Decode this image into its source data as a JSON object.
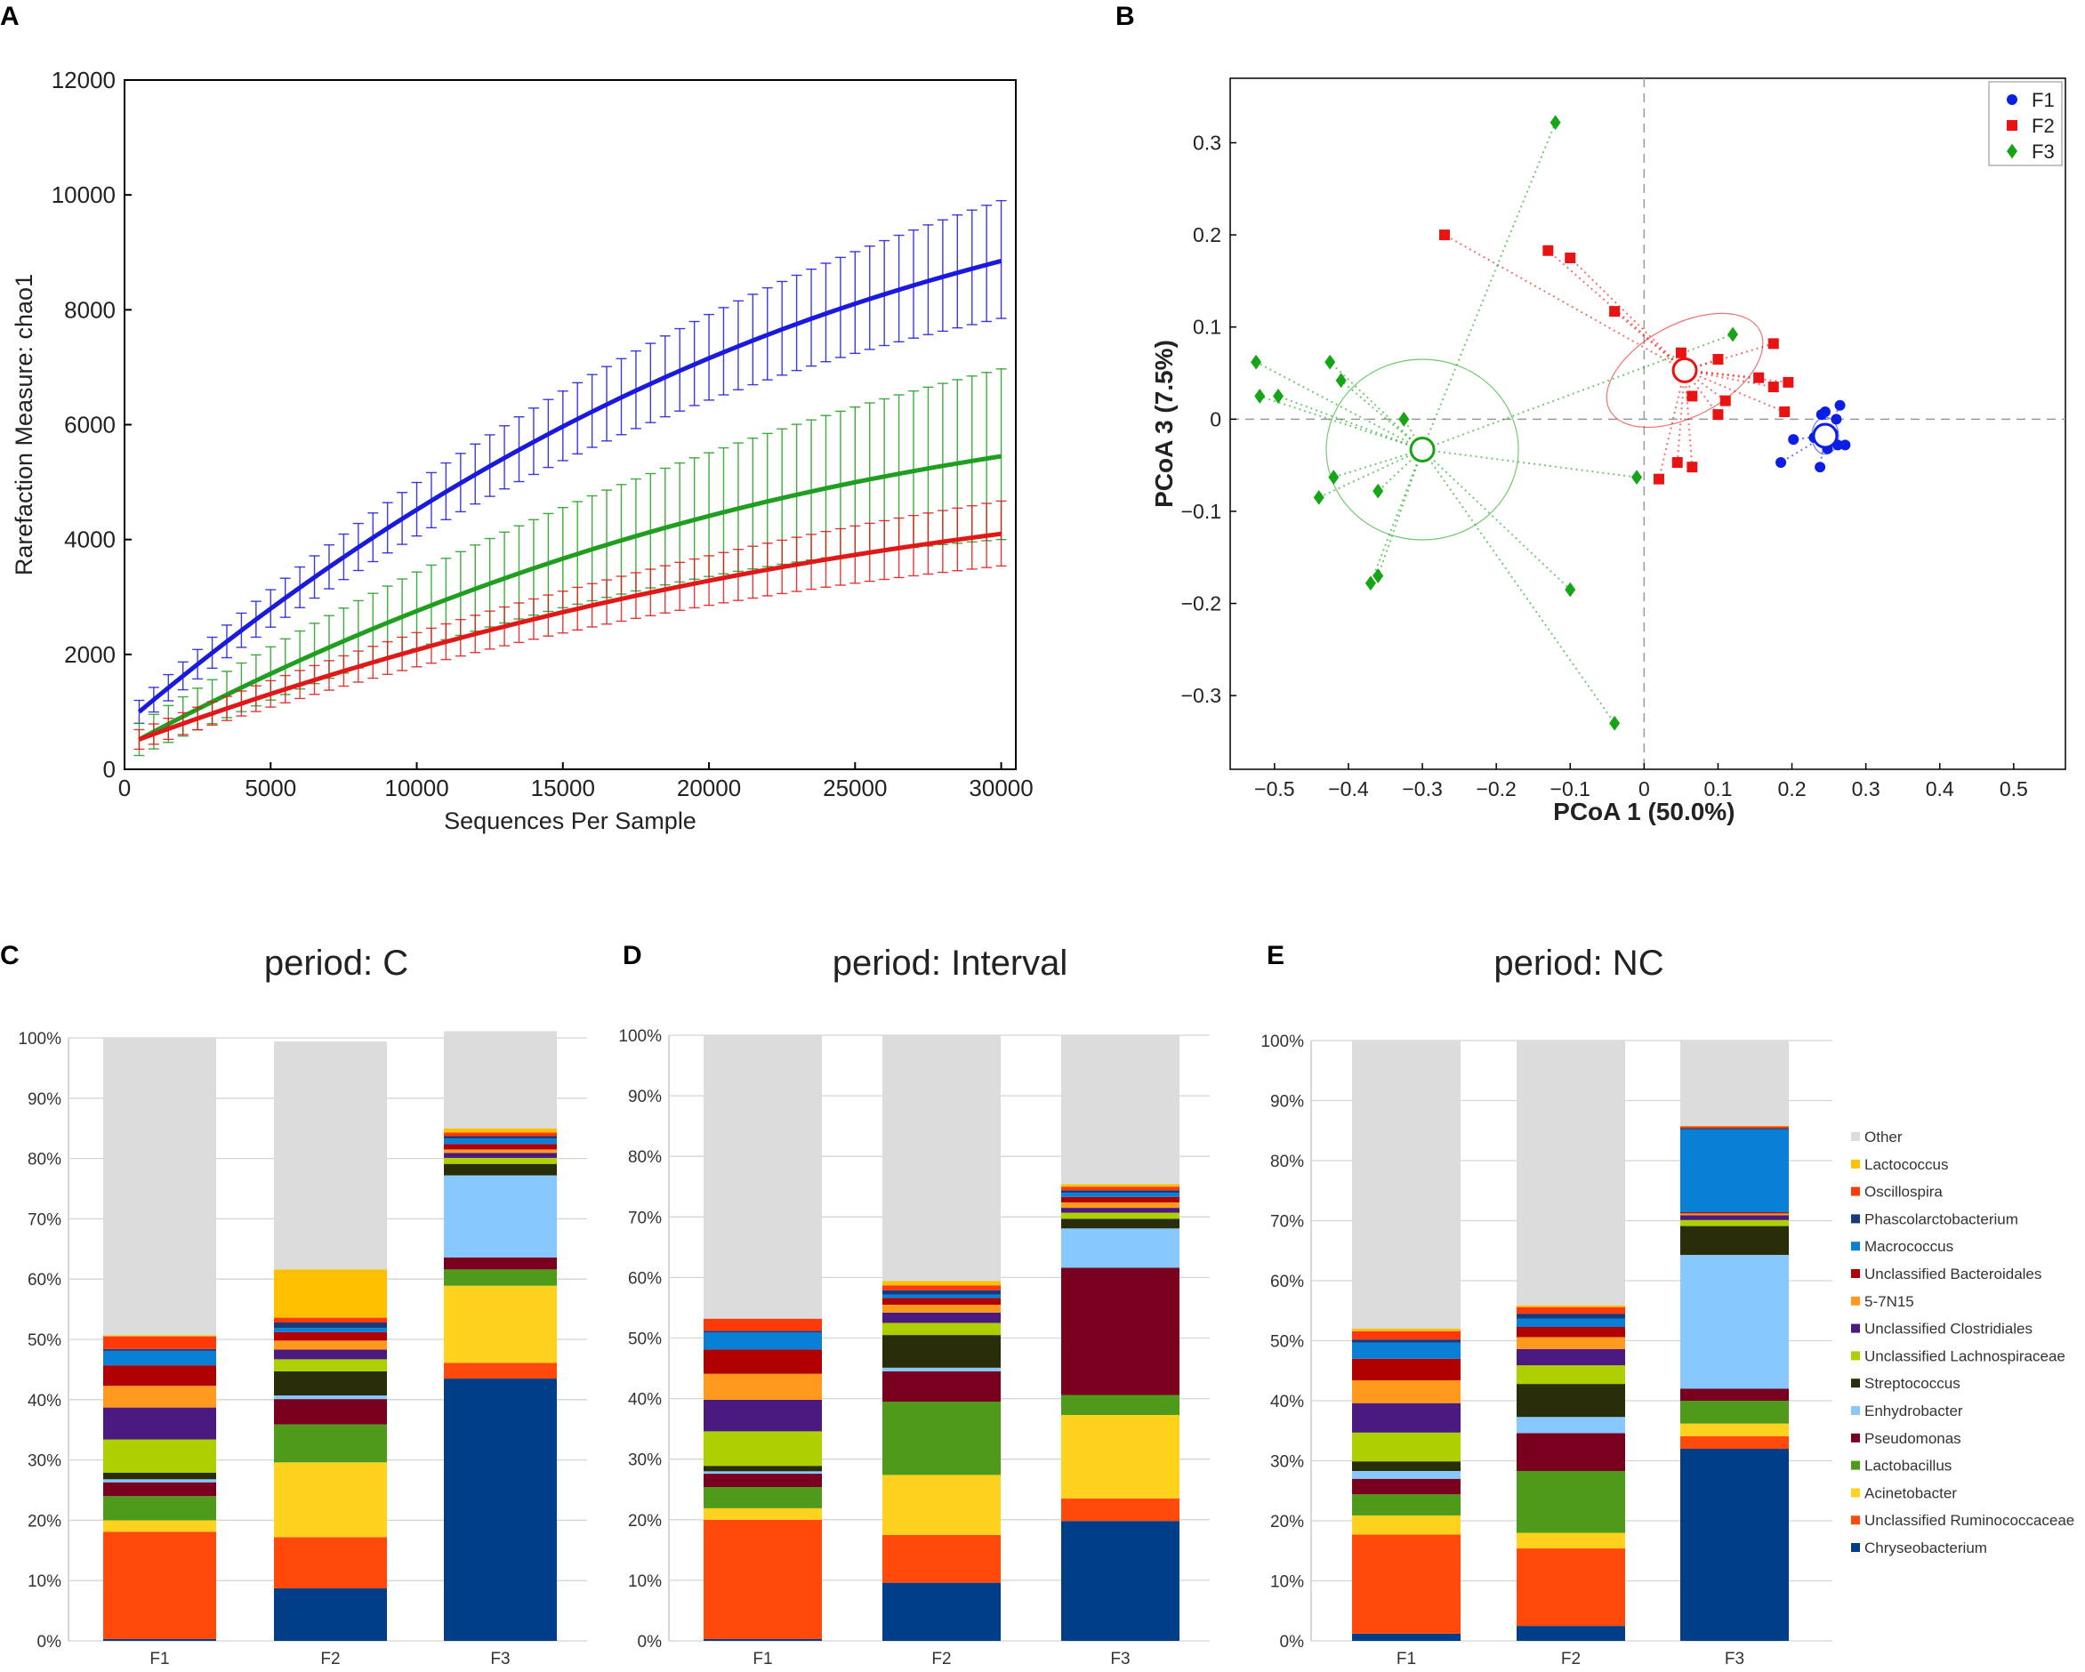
{
  "panels": {
    "a": {
      "letter": "A"
    },
    "b": {
      "letter": "B"
    },
    "c": {
      "letter": "C"
    },
    "d": {
      "letter": "D"
    },
    "e": {
      "letter": "E"
    }
  },
  "colors": {
    "blue": "#1a1adc",
    "green": "#1f9e1f",
    "red": "#e01818",
    "F1": "#0a1ee6",
    "F2": "#e81414",
    "F3": "#16a516"
  },
  "chart_data": [
    {
      "id": "A",
      "type": "line",
      "xlabel": "Sequences Per Sample",
      "ylabel": "Rarefaction Measure: chao1",
      "xlim": [
        0,
        30500
      ],
      "ylim": [
        0,
        12000
      ],
      "xticks": [
        0,
        5000,
        10000,
        15000,
        20000,
        25000,
        30000
      ],
      "yticks": [
        0,
        2000,
        4000,
        6000,
        8000,
        10000,
        12000
      ],
      "x": [
        500,
        1000,
        1500,
        2000,
        2500,
        3000,
        3500,
        4000,
        4500,
        5000,
        5500,
        6000,
        6500,
        7000,
        7500,
        8000,
        8500,
        9000,
        9500,
        10000,
        10500,
        11000,
        11500,
        12000,
        12500,
        13000,
        13500,
        14000,
        14500,
        15000,
        15500,
        16000,
        16500,
        17000,
        17500,
        18000,
        18500,
        19000,
        19500,
        20000,
        20500,
        21000,
        21500,
        22000,
        22500,
        23000,
        23500,
        24000,
        24500,
        25000,
        25500,
        26000,
        26500,
        27000,
        27500,
        28000,
        28500,
        29000,
        29500,
        30000
      ],
      "series": [
        {
          "name": "blue",
          "color": "#1a1adc",
          "top_v": 8850,
          "bot_v": 1000,
          "s_end": 1000,
          "k_top": 0.5,
          "top_err": 1050,
          "bot_err": 200
        },
        {
          "name": "green",
          "color": "#1f9e1f",
          "top_v": 5450,
          "bot_v": 520,
          "s_end": 1450,
          "k_top": 0.48,
          "top_err": 1520,
          "bot_err": 280
        },
        {
          "name": "red",
          "color": "#e01818",
          "top_v": 4100,
          "bot_v": 520,
          "s_end": 560,
          "k_top": 0.55,
          "top_err": 570,
          "bot_err": 170
        }
      ]
    },
    {
      "id": "B",
      "type": "scatter",
      "xlabel": "PCoA 1 (50.0%)",
      "ylabel": "PCoA 3 (7.5%)",
      "xlim": [
        -0.56,
        0.57
      ],
      "ylim": [
        -0.38,
        0.37
      ],
      "xticks": [
        -0.5,
        -0.4,
        -0.3,
        -0.2,
        -0.1,
        0,
        0.1,
        0.2,
        0.3,
        0.4,
        0.5
      ],
      "xtick_labels": [
        "−0.5",
        "−0.4",
        "−0.3",
        "−0.2",
        "−0.1",
        "0",
        "0.1",
        "0.2",
        "0.3",
        "0.4",
        "0.5"
      ],
      "yticks": [
        0.3,
        0.2,
        0.1,
        0,
        -0.1,
        -0.2,
        -0.3
      ],
      "ytick_labels": [
        "0.3",
        "0.2",
        "0.1",
        "0",
        "−0.1",
        "−0.2",
        "−0.3"
      ],
      "legend": [
        "F1",
        "F2",
        "F3"
      ],
      "legend_position": "top-right",
      "groups": [
        {
          "name": "F1",
          "marker": "circle",
          "color": "#0a1ee6",
          "centroid": [
            0.245,
            -0.018
          ],
          "ellipse": {
            "rx": 0.018,
            "ry": 0.02,
            "angle": 0
          },
          "points": [
            [
              0.26,
              0.0
            ],
            [
              0.272,
              -0.028
            ],
            [
              0.262,
              -0.028
            ],
            [
              0.238,
              -0.052
            ],
            [
              0.185,
              -0.047
            ],
            [
              0.202,
              -0.022
            ],
            [
              0.24,
              0.005
            ],
            [
              0.245,
              0.008
            ],
            [
              0.265,
              0.015
            ],
            [
              0.255,
              -0.015
            ],
            [
              0.23,
              -0.02
            ],
            [
              0.248,
              -0.032
            ]
          ]
        },
        {
          "name": "F2",
          "marker": "square",
          "color": "#e81414",
          "centroid": [
            0.055,
            0.053
          ],
          "ellipse": {
            "rx": 0.115,
            "ry": 0.05,
            "angle": -28
          },
          "points": [
            [
              -0.27,
              0.2
            ],
            [
              -0.13,
              0.183
            ],
            [
              -0.1,
              0.175
            ],
            [
              -0.04,
              0.117
            ],
            [
              0.05,
              0.072
            ],
            [
              0.1,
              0.065
            ],
            [
              0.175,
              0.082
            ],
            [
              0.155,
              0.045
            ],
            [
              0.175,
              0.035
            ],
            [
              0.195,
              0.04
            ],
            [
              0.19,
              0.008
            ],
            [
              0.11,
              0.02
            ],
            [
              0.1,
              0.005
            ],
            [
              0.065,
              0.025
            ],
            [
              0.045,
              -0.047
            ],
            [
              0.065,
              -0.052
            ],
            [
              0.02,
              -0.065
            ]
          ]
        },
        {
          "name": "F3",
          "marker": "diamond",
          "color": "#16a516",
          "centroid": [
            -0.3,
            -0.033
          ],
          "ellipse": {
            "rx": 0.13,
            "ry": 0.098,
            "angle": 0
          },
          "points": [
            [
              -0.12,
              0.322
            ],
            [
              -0.525,
              0.062
            ],
            [
              -0.52,
              0.025
            ],
            [
              -0.495,
              0.025
            ],
            [
              -0.425,
              0.062
            ],
            [
              -0.41,
              0.042
            ],
            [
              -0.325,
              0.0
            ],
            [
              -0.42,
              -0.063
            ],
            [
              -0.44,
              -0.085
            ],
            [
              -0.36,
              -0.078
            ],
            [
              -0.37,
              -0.178
            ],
            [
              -0.36,
              -0.17
            ],
            [
              -0.1,
              -0.185
            ],
            [
              -0.04,
              -0.33
            ],
            [
              -0.01,
              -0.063
            ],
            [
              0.12,
              0.092
            ]
          ]
        }
      ]
    },
    {
      "id": "C",
      "type": "bar",
      "title": "period: C",
      "categories": [
        "F1",
        "F2",
        "F3"
      ],
      "ytick_labels": [
        "0%",
        "10%",
        "20%",
        "30%",
        "40%",
        "50%",
        "60%",
        "70%",
        "80%",
        "90%",
        "100%"
      ],
      "series": [
        {
          "name": "Chryseobacterium",
          "values": [
            0.3,
            8.7,
            43.5
          ]
        },
        {
          "name": "Unclassified Ruminococcaceae",
          "values": [
            17.8,
            8.5,
            2.6
          ]
        },
        {
          "name": "Acinetobacter",
          "values": [
            1.9,
            12.4,
            12.8
          ]
        },
        {
          "name": "Lactobacillus",
          "values": [
            4.0,
            6.3,
            2.7
          ]
        },
        {
          "name": "Pseudomonas",
          "values": [
            2.3,
            4.2,
            2.0
          ]
        },
        {
          "name": "Enhydrobacter",
          "values": [
            0.5,
            0.6,
            13.6
          ]
        },
        {
          "name": "Streptococcus",
          "values": [
            1.1,
            4.0,
            1.9
          ]
        },
        {
          "name": "Unclassified Lachnospiraceae",
          "values": [
            5.5,
            2.0,
            1.0
          ]
        },
        {
          "name": "Unclassified Clostridiales",
          "values": [
            5.3,
            1.6,
            0.8
          ]
        },
        {
          "name": "5-7N15",
          "values": [
            3.6,
            1.5,
            0.6
          ]
        },
        {
          "name": "Unclassified Bacteroidales",
          "values": [
            3.4,
            1.4,
            0.9
          ]
        },
        {
          "name": "Macrococcus",
          "values": [
            2.4,
            0.7,
            0.9
          ]
        },
        {
          "name": "Phascolarctobacterium",
          "values": [
            0.3,
            0.9,
            0.4
          ]
        },
        {
          "name": "Oscillospira",
          "values": [
            2.1,
            0.8,
            0.6
          ]
        },
        {
          "name": "Lactococcus",
          "values": [
            0.2,
            8.0,
            0.7
          ]
        },
        {
          "name": "Other",
          "values": [
            49.3,
            37.8,
            16.1
          ]
        }
      ]
    },
    {
      "id": "D",
      "type": "bar",
      "title": "period: Interval",
      "categories": [
        "F1",
        "F2",
        "F3"
      ],
      "ytick_labels": [
        "0%",
        "10%",
        "20%",
        "30%",
        "40%",
        "50%",
        "60%",
        "70%",
        "80%",
        "90%",
        "100%"
      ],
      "series": [
        {
          "name": "Chryseobacterium",
          "values": [
            0.3,
            9.6,
            19.8
          ]
        },
        {
          "name": "Unclassified Ruminococcaceae",
          "values": [
            19.7,
            7.9,
            3.7
          ]
        },
        {
          "name": "Acinetobacter",
          "values": [
            1.9,
            9.9,
            13.8
          ]
        },
        {
          "name": "Lactobacillus",
          "values": [
            3.5,
            12.1,
            3.3
          ]
        },
        {
          "name": "Pseudomonas",
          "values": [
            2.2,
            5.0,
            21.0
          ]
        },
        {
          "name": "Enhydrobacter",
          "values": [
            0.4,
            0.6,
            6.5
          ]
        },
        {
          "name": "Streptococcus",
          "values": [
            0.9,
            5.4,
            1.6
          ]
        },
        {
          "name": "Unclassified Lachnospiraceae",
          "values": [
            5.7,
            2.0,
            1.0
          ]
        },
        {
          "name": "Unclassified Clostridiales",
          "values": [
            5.2,
            1.7,
            0.8
          ]
        },
        {
          "name": "5-7N15",
          "values": [
            4.3,
            1.3,
            0.9
          ]
        },
        {
          "name": "Unclassified Bacteroidales",
          "values": [
            4.0,
            1.1,
            0.9
          ]
        },
        {
          "name": "Macrococcus",
          "values": [
            2.8,
            0.6,
            0.7
          ]
        },
        {
          "name": "Phascolarctobacterium",
          "values": [
            0.3,
            0.7,
            0.4
          ]
        },
        {
          "name": "Oscillospira",
          "values": [
            2.0,
            0.8,
            0.6
          ]
        },
        {
          "name": "Lactococcus",
          "values": [
            0.0,
            0.7,
            0.4
          ]
        },
        {
          "name": "Other",
          "values": [
            46.8,
            40.6,
            24.6
          ]
        }
      ]
    },
    {
      "id": "E",
      "type": "bar",
      "title": "period: NC",
      "categories": [
        "F1",
        "F2",
        "F3"
      ],
      "ytick_labels": [
        "0%",
        "10%",
        "20%",
        "30%",
        "40%",
        "50%",
        "60%",
        "70%",
        "80%",
        "90%",
        "100%"
      ],
      "series": [
        {
          "name": "Chryseobacterium",
          "values": [
            1.2,
            2.5,
            32.0
          ]
        },
        {
          "name": "Unclassified Ruminococcaceae",
          "values": [
            16.5,
            12.9,
            2.1
          ]
        },
        {
          "name": "Acinetobacter",
          "values": [
            3.2,
            2.6,
            2.1
          ]
        },
        {
          "name": "Lactobacillus",
          "values": [
            3.5,
            10.3,
            3.8
          ]
        },
        {
          "name": "Pseudomonas",
          "values": [
            2.6,
            6.3,
            2.0
          ]
        },
        {
          "name": "Enhydrobacter",
          "values": [
            1.3,
            2.7,
            22.3
          ]
        },
        {
          "name": "Streptococcus",
          "values": [
            1.6,
            5.5,
            4.8
          ]
        },
        {
          "name": "Unclassified Lachnospiraceae",
          "values": [
            4.8,
            3.1,
            1.0
          ]
        },
        {
          "name": "Unclassified Clostridiales",
          "values": [
            4.9,
            2.7,
            0.8
          ]
        },
        {
          "name": "5-7N15",
          "values": [
            3.8,
            2.0,
            0.3
          ]
        },
        {
          "name": "Unclassified Bacteroidales",
          "values": [
            3.6,
            1.7,
            0.2
          ]
        },
        {
          "name": "Macrococcus",
          "values": [
            2.7,
            1.4,
            13.8
          ]
        },
        {
          "name": "Phascolarctobacterium",
          "values": [
            0.5,
            0.8,
            0.2
          ]
        },
        {
          "name": "Oscillospira",
          "values": [
            1.4,
            1.1,
            0.3
          ]
        },
        {
          "name": "Lactococcus",
          "values": [
            0.4,
            0.3,
            0.1
          ]
        },
        {
          "name": "Other",
          "values": [
            48.0,
            44.1,
            14.2
          ]
        }
      ]
    }
  ],
  "legend_taxa": [
    {
      "name": "Other",
      "color": "#dcdcdc"
    },
    {
      "name": "Lactococcus",
      "color": "#ffc000"
    },
    {
      "name": "Oscillospira",
      "color": "#ff3a0a"
    },
    {
      "name": "Phascolarctobacterium",
      "color": "#183a7a"
    },
    {
      "name": "Macrococcus",
      "color": "#0a7fd6"
    },
    {
      "name": "Unclassified Bacteroidales",
      "color": "#b00000"
    },
    {
      "name": "5-7N15",
      "color": "#ff9a1e"
    },
    {
      "name": "Unclassified Clostridiales",
      "color": "#4a1a80"
    },
    {
      "name": "Unclassified Lachnospiraceae",
      "color": "#aed000"
    },
    {
      "name": "Streptococcus",
      "color": "#2a2e08"
    },
    {
      "name": "Enhydrobacter",
      "color": "#87c8ff"
    },
    {
      "name": "Pseudomonas",
      "color": "#7a0020"
    },
    {
      "name": "Lactobacillus",
      "color": "#4e9a1a"
    },
    {
      "name": "Acinetobacter",
      "color": "#ffd21e"
    },
    {
      "name": "Unclassified Ruminococcaceae",
      "color": "#ff4a0c"
    },
    {
      "name": "Chryseobacterium",
      "color": "#003f88"
    }
  ]
}
